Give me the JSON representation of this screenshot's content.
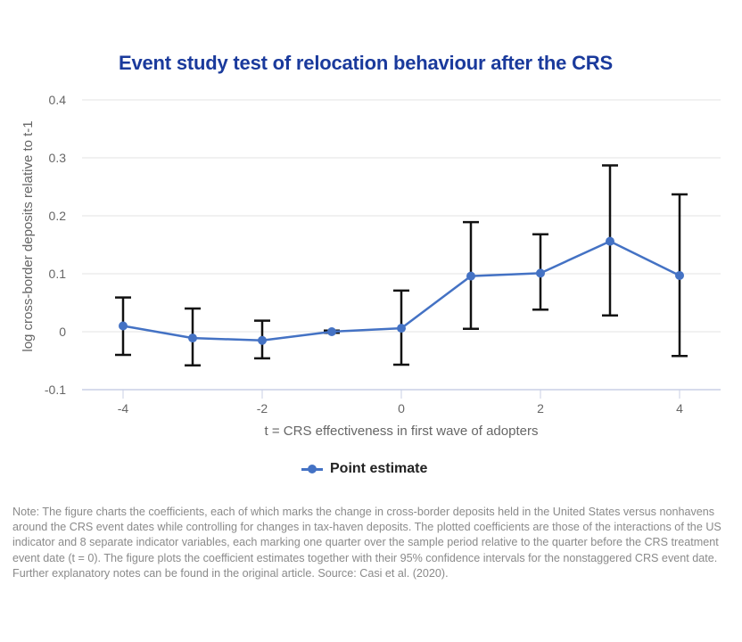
{
  "chart_data": {
    "type": "line",
    "title": "Event study test of relocation behaviour after the CRS",
    "xlabel": "t = CRS effectiveness in first wave of adopters",
    "ylabel": "log cross-border deposits relative to t-1",
    "xlim": [
      -5.2,
      4.5
    ],
    "ylim": [
      -0.1,
      0.4
    ],
    "x_ticks": [
      -4,
      -2,
      0,
      2,
      4
    ],
    "x_tick_labels": [
      "-4",
      "-2",
      "0",
      "2",
      "4"
    ],
    "y_ticks": [
      -0.1,
      0,
      0.1,
      0.2,
      0.3,
      0.4
    ],
    "y_tick_labels": [
      "-0.1",
      "0",
      "0.1",
      "0.2",
      "0.3",
      "0.4"
    ],
    "grid": "horizontal",
    "legend_position": "bottom",
    "series": [
      {
        "name": "Point estimate",
        "color": "#4472c4",
        "x": [
          -4,
          -3,
          -2,
          -1,
          0,
          1,
          2,
          3,
          4
        ],
        "values": [
          0.01,
          -0.011,
          -0.015,
          0.0,
          0.006,
          0.096,
          0.101,
          0.156,
          0.097
        ],
        "ci_upper": [
          0.059,
          0.04,
          0.019,
          0.002,
          0.071,
          0.189,
          0.168,
          0.287,
          0.237
        ],
        "ci_lower": [
          -0.04,
          -0.058,
          -0.046,
          -0.002,
          -0.057,
          0.005,
          0.038,
          0.028,
          -0.042
        ]
      }
    ],
    "error_bar_color": "#111111"
  },
  "legend": {
    "label": "Point estimate"
  },
  "note": "Note: The figure charts the coefficients, each of which marks the change in cross-border deposits held in the United States versus nonhavens around the CRS event dates while controlling for changes in tax-haven deposits. The plotted coefficients are those of the interactions of the US indicator and 8 separate indicator variables, each marking one quarter over the sample period relative to the quarter before the CRS treatment event date (t = 0). The figure plots the coefficient estimates together with their 95% confidence intervals for the nonstaggered CRS event date. Further explanatory notes can be found in the original article. Source: Casi et al. (2020)."
}
